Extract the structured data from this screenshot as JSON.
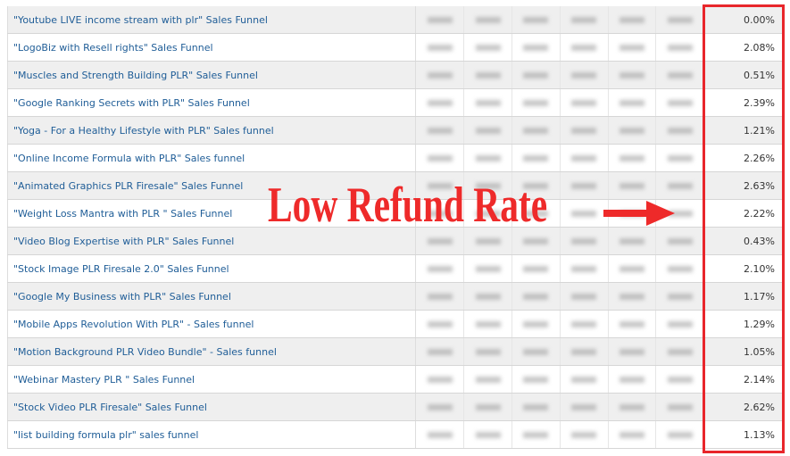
{
  "rows": [
    {
      "name": "\"Youtube LIVE income stream with plr\" Sales Funnel",
      "refund_rate": "0.00%"
    },
    {
      "name": "\"LogoBiz with Resell rights\" Sales Funnel",
      "refund_rate": "2.08%"
    },
    {
      "name": "\"Muscles and Strength Building PLR\" Sales Funnel",
      "refund_rate": "0.51%"
    },
    {
      "name": "\"Google Ranking Secrets with PLR\" Sales Funnel",
      "refund_rate": "2.39%"
    },
    {
      "name": "\"Yoga - For a Healthy Lifestyle with PLR\" Sales funnel",
      "refund_rate": "1.21%"
    },
    {
      "name": "\"Online Income Formula with PLR\" Sales funnel",
      "refund_rate": "2.26%"
    },
    {
      "name": "\"Animated Graphics PLR Firesale\" Sales Funnel",
      "refund_rate": "2.63%"
    },
    {
      "name": "\"Weight Loss Mantra with PLR \" Sales Funnel",
      "refund_rate": "2.22%"
    },
    {
      "name": "\"Video Blog Expertise with PLR\" Sales Funnel",
      "refund_rate": "0.43%"
    },
    {
      "name": "\"Stock Image PLR Firesale 2.0\" Sales Funnel",
      "refund_rate": "2.10%"
    },
    {
      "name": "\"Google My Business with PLR\" Sales Funnel",
      "refund_rate": "1.17%"
    },
    {
      "name": "\"Mobile Apps Revolution With PLR\" - Sales funnel",
      "refund_rate": "1.29%"
    },
    {
      "name": "\"Motion Background PLR Video Bundle\" - Sales funnel",
      "refund_rate": "1.05%"
    },
    {
      "name": "\"Webinar Mastery PLR \" Sales Funnel",
      "refund_rate": "2.14%"
    },
    {
      "name": "\"Stock Video PLR Firesale\" Sales Funnel",
      "refund_rate": "2.62%"
    },
    {
      "name": "\"list building formula plr\" sales funnel",
      "refund_rate": "1.13%"
    }
  ],
  "annotation": {
    "text": "Low Refund Rate",
    "color": "#ee2a2a",
    "arrow_icon": "right-arrow"
  },
  "colors": {
    "link": "#1f5d97",
    "highlight_box": "#e8262b"
  }
}
